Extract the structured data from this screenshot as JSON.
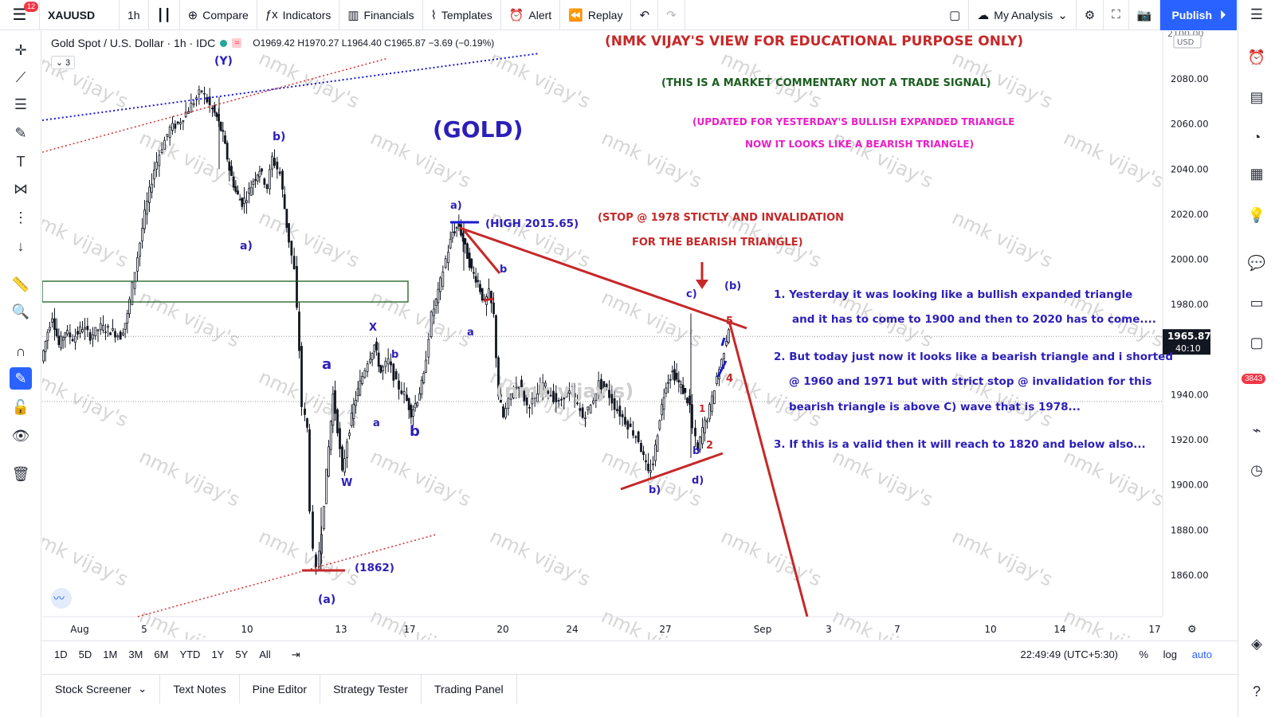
{
  "topbar": {
    "notifications": "12",
    "symbol": "XAUUSD",
    "interval": "1h",
    "compare": "Compare",
    "indicators": "Indicators",
    "financials": "Financials",
    "templates": "Templates",
    "alert": "Alert",
    "replay": "Replay",
    "layout_name": "My Analysis",
    "publish": "Publish"
  },
  "legend": {
    "title": "Gold Spot / U.S. Dollar · 1h · IDC",
    "o_label": "O",
    "o": "1969.42",
    "h_label": "H",
    "h": "1970.27",
    "l_label": "L",
    "l": "1964.40",
    "c_label": "C",
    "c": "1965.87",
    "change": "−3.69 (−0.19%)",
    "indicator_count": "3"
  },
  "price_axis": {
    "currency": "USD",
    "partial_top": "2100.00",
    "ticks": [
      "2080.00",
      "2060.00",
      "2040.00",
      "2020.00",
      "2000.00",
      "1980.00",
      "1960.00",
      "1940.00",
      "1920.00",
      "1900.00",
      "1880.00",
      "1860.00"
    ],
    "last_price": "1965.87",
    "countdown": "40:10"
  },
  "time_axis": {
    "ticks": [
      "Aug",
      "5",
      "10",
      "13",
      "17",
      "20",
      "24",
      "27",
      "Sep",
      "3",
      "7",
      "10",
      "14",
      "17"
    ]
  },
  "annotations": {
    "header": "(NMK VIJAY'S VIEW FOR EDUCATIONAL PURPOSE ONLY)",
    "disclaimer": "(THIS IS A MARKET COMMENTARY NOT A TRADE SIGNAL)",
    "update_1": "(UPDATED FOR YESTERDAY'S BULLISH EXPANDED TRIANGLE",
    "update_2": "NOW IT LOOKS LIKE A BEARISH TRIANGLE)",
    "gold_title": "(GOLD)",
    "stop_1": "(STOP @ 1978 STICTLY AND INVALIDATION",
    "stop_2": "FOR THE BEARISH TRIANGLE)",
    "high": "(HIGH 2015.65)",
    "low": "(1862)",
    "note_1a": "1. Yesterday it was looking like a bullish expanded triangle",
    "note_1b": "and it has to come to 1900 and then to 2020 has to come....",
    "note_2a": "2. But today just now it looks like a bearish triangle and i shorted",
    "note_2b": "@ 1960 and 1971 but with strict stop @ invalidation for this",
    "note_2c": "bearish triangle is above C) wave that is 1978...",
    "note_3": "3. If this is a valid then it will reach to 1820 and below also...",
    "faded_watermark": "(nmk vijay's)",
    "watermark": "nmk vijay's"
  },
  "wave_labels": {
    "Y": "(Y)",
    "b_top": "b)",
    "a_left": "a)",
    "a_big": "a",
    "b_big": "b",
    "x": "X",
    "b_small1": "b",
    "a_small1": "a",
    "w": "W",
    "A_paren": "(a)",
    "a_paren_top": "a)",
    "b_red": "b",
    "a_small2": "a",
    "c_paren": "c)",
    "b_paren": "(b)",
    "b_paren_low": "b)",
    "d_paren": "d)",
    "b_small2": "b",
    "n1": "1",
    "n2": "2",
    "n4": "4",
    "n5": "5"
  },
  "range_bar": {
    "ranges": [
      "1D",
      "5D",
      "1M",
      "3M",
      "6M",
      "YTD",
      "1Y",
      "5Y",
      "All"
    ],
    "clock": "22:49:49 (UTC+5:30)",
    "percent": "%",
    "log": "log",
    "auto": "auto"
  },
  "bottom_tabs": [
    "Stock Screener",
    "Text Notes",
    "Pine Editor",
    "Strategy Tester",
    "Trading Panel"
  ],
  "colors": {
    "brand_blue": "#2962ff",
    "annotation_red": "#c62828",
    "wave_purple": "#2c1fb8",
    "magenta": "#e91ec8",
    "green_text": "#1b5e20",
    "candle": "#131722"
  },
  "chart_data": {
    "type": "candlestick",
    "symbol": "XAUUSD",
    "interval": "1h",
    "ylim": [
      1845,
      2100
    ],
    "x_labels": [
      "Aug",
      "5",
      "10",
      "13",
      "17",
      "20",
      "24",
      "27",
      "Sep",
      "3",
      "7",
      "10",
      "14",
      "17"
    ],
    "path_points": [
      [
        0,
        1955
      ],
      [
        8,
        1968
      ],
      [
        14,
        1975
      ],
      [
        22,
        1962
      ],
      [
        30,
        1968
      ],
      [
        40,
        1965
      ],
      [
        52,
        1970
      ],
      [
        62,
        1966
      ],
      [
        75,
        1970
      ],
      [
        90,
        1968
      ],
      [
        100,
        1966
      ],
      [
        108,
        1975
      ],
      [
        118,
        1995
      ],
      [
        130,
        2020
      ],
      [
        142,
        2040
      ],
      [
        152,
        2050
      ],
      [
        162,
        2058
      ],
      [
        172,
        2060
      ],
      [
        182,
        2065
      ],
      [
        192,
        2070
      ],
      [
        202,
        2075
      ],
      [
        212,
        2068
      ],
      [
        220,
        2063
      ],
      [
        228,
        2055
      ],
      [
        236,
        2040
      ],
      [
        244,
        2030
      ],
      [
        252,
        2025
      ],
      [
        258,
        2028
      ],
      [
        266,
        2035
      ],
      [
        274,
        2040
      ],
      [
        284,
        2032
      ],
      [
        290,
        2045
      ],
      [
        300,
        2038
      ],
      [
        308,
        2015
      ],
      [
        318,
        1995
      ],
      [
        324,
        1960
      ],
      [
        328,
        1935
      ],
      [
        334,
        1925
      ],
      [
        338,
        1890
      ],
      [
        342,
        1870
      ],
      [
        346,
        1862
      ],
      [
        352,
        1880
      ],
      [
        358,
        1905
      ],
      [
        366,
        1940
      ],
      [
        372,
        1925
      ],
      [
        378,
        1905
      ],
      [
        384,
        1920
      ],
      [
        392,
        1935
      ],
      [
        400,
        1945
      ],
      [
        410,
        1955
      ],
      [
        418,
        1962
      ],
      [
        426,
        1950
      ],
      [
        436,
        1955
      ],
      [
        446,
        1945
      ],
      [
        456,
        1940
      ],
      [
        464,
        1932
      ],
      [
        472,
        1938
      ],
      [
        480,
        1948
      ],
      [
        490,
        1975
      ],
      [
        498,
        1985
      ],
      [
        508,
        2000
      ],
      [
        516,
        2012
      ],
      [
        524,
        2015
      ],
      [
        532,
        2005
      ],
      [
        540,
        1995
      ],
      [
        548,
        1990
      ],
      [
        556,
        1980
      ],
      [
        562,
        1985
      ],
      [
        568,
        1975
      ],
      [
        574,
        1940
      ],
      [
        580,
        1930
      ],
      [
        590,
        1940
      ],
      [
        600,
        1945
      ],
      [
        610,
        1935
      ],
      [
        620,
        1938
      ],
      [
        630,
        1945
      ],
      [
        640,
        1940
      ],
      [
        650,
        1936
      ],
      [
        660,
        1942
      ],
      [
        670,
        1938
      ],
      [
        680,
        1930
      ],
      [
        690,
        1935
      ],
      [
        700,
        1945
      ],
      [
        710,
        1942
      ],
      [
        720,
        1935
      ],
      [
        730,
        1930
      ],
      [
        740,
        1925
      ],
      [
        750,
        1920
      ],
      [
        756,
        1912
      ],
      [
        762,
        1905
      ],
      [
        768,
        1910
      ],
      [
        776,
        1930
      ],
      [
        784,
        1945
      ],
      [
        792,
        1950
      ],
      [
        800,
        1945
      ],
      [
        808,
        1940
      ],
      [
        814,
        1935
      ],
      [
        818,
        1925
      ],
      [
        824,
        1915
      ],
      [
        830,
        1925
      ],
      [
        836,
        1930
      ],
      [
        842,
        1938
      ],
      [
        848,
        1948
      ],
      [
        854,
        1955
      ],
      [
        860,
        1965
      ],
      [
        864,
        1970
      ]
    ]
  }
}
